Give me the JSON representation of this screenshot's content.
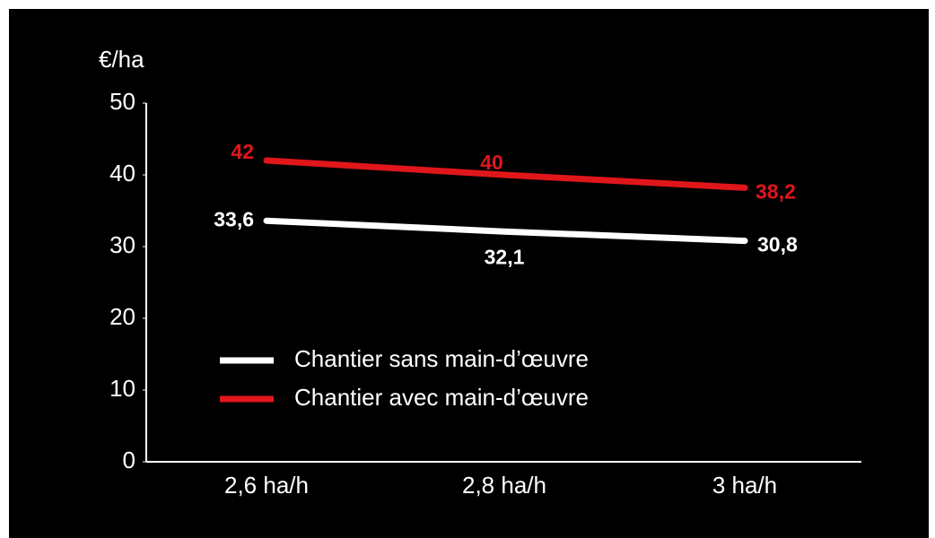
{
  "chart_data": {
    "type": "line",
    "y_label": "€/ha",
    "categories": [
      "2,6 ha/h",
      "2,8 ha/h",
      "3 ha/h"
    ],
    "series": [
      {
        "name": "Chantier sans main-d’œuvre",
        "color": "#ffffff",
        "values": [
          33.6,
          32.1,
          30.8
        ],
        "value_labels": [
          "33,6",
          "32,1",
          "30,8"
        ]
      },
      {
        "name": "Chantier avec main-d’œuvre",
        "color": "#e0161b",
        "values": [
          42,
          40,
          38.2
        ],
        "value_labels": [
          "42",
          "40",
          "38,2"
        ]
      }
    ],
    "ylim": [
      0,
      50
    ],
    "yticks": [
      0,
      10,
      20,
      30,
      40,
      50
    ],
    "background": "#000000"
  }
}
